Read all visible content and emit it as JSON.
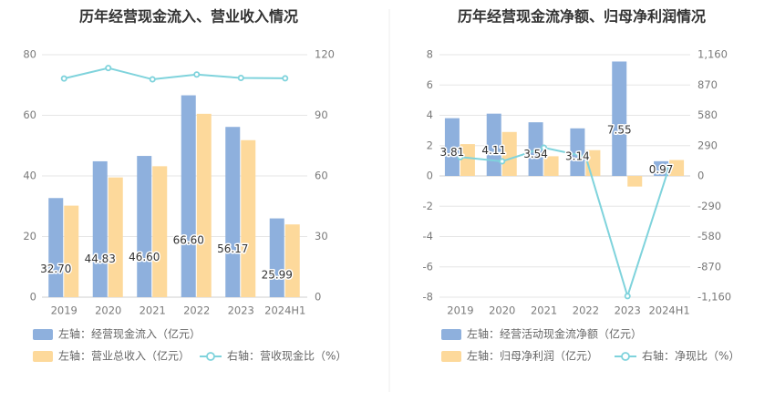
{
  "chart_data": [
    {
      "type": "bar",
      "title": "历年经营现金流入、营业收入情况",
      "categories": [
        "2019",
        "2020",
        "2021",
        "2022",
        "2023",
        "2024H1"
      ],
      "left_axis": {
        "ylim": [
          0,
          80
        ],
        "ticks": [
          "0",
          "20",
          "40",
          "60",
          "80"
        ]
      },
      "right_axis": {
        "ylim": [
          0,
          120
        ],
        "ticks": [
          "0",
          "30",
          "60",
          "90",
          "120"
        ]
      },
      "series": [
        {
          "name": "左轴：经营现金流入（亿元）",
          "kind": "bar",
          "axis": "left",
          "color": "#8eb0dd",
          "values": [
            32.7,
            44.83,
            46.6,
            66.6,
            56.17,
            25.99
          ],
          "labels": [
            "32.70",
            "44.83",
            "46.60",
            "66.60",
            "56.17",
            "25.99"
          ]
        },
        {
          "name": "左轴：营业总收入（亿元）",
          "kind": "bar",
          "axis": "left",
          "color": "#fdd99b",
          "values": [
            30.2,
            39.5,
            43.2,
            60.5,
            51.8,
            24.0
          ]
        },
        {
          "name": "右轴：营收现金比（%）",
          "kind": "line",
          "axis": "right",
          "color": "#7fd3dc",
          "values": [
            108.2,
            113.4,
            107.8,
            110.2,
            108.5,
            108.3
          ]
        }
      ],
      "legend_position": "bottom-left",
      "grid": true
    },
    {
      "type": "bar",
      "title": "历年经营现金流净额、归母净利润情况",
      "categories": [
        "2019",
        "2020",
        "2021",
        "2022",
        "2023",
        "2024H1"
      ],
      "left_axis": {
        "ylim": [
          -8,
          8
        ],
        "ticks": [
          "-8",
          "-6",
          "-4",
          "-2",
          "0",
          "2",
          "4",
          "6",
          "8"
        ]
      },
      "right_axis": {
        "ylim": [
          -1160,
          1160
        ],
        "ticks": [
          "-1,160",
          "-870",
          "-580",
          "-290",
          "0",
          "290",
          "580",
          "870",
          "1,160"
        ]
      },
      "series": [
        {
          "name": "左轴：经营活动现金流净额（亿元）",
          "kind": "bar",
          "axis": "left",
          "color": "#8eb0dd",
          "values": [
            3.81,
            4.11,
            3.54,
            3.14,
            7.55,
            0.97
          ],
          "labels": [
            "3.81",
            "4.11",
            "3.54",
            "3.14",
            "7.55",
            "0.97"
          ]
        },
        {
          "name": "左轴：归母净利润（亿元）",
          "kind": "bar",
          "axis": "left",
          "color": "#fdd99b",
          "values": [
            2.1,
            2.9,
            1.3,
            1.7,
            -0.7,
            1.05
          ]
        },
        {
          "name": "右轴：净现比（%）",
          "kind": "line",
          "axis": "right",
          "color": "#7fd3dc",
          "values": [
            180,
            140,
            270,
            185,
            -1150,
            90
          ]
        }
      ],
      "legend_position": "bottom-left",
      "grid": true
    }
  ]
}
